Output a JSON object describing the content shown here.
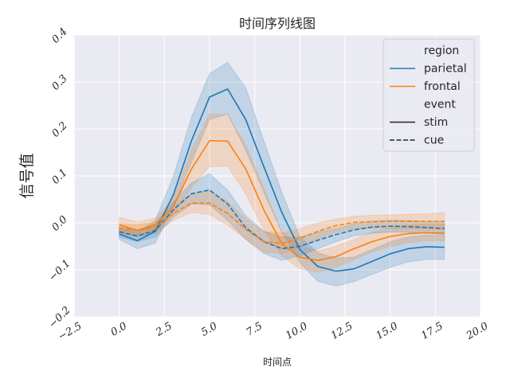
{
  "chart_data": {
    "type": "line",
    "title": "时间序列线图",
    "xlabel": "时间点",
    "ylabel": "信号值",
    "xlim": [
      -2.5,
      20.0
    ],
    "ylim": [
      -0.2,
      0.4
    ],
    "xticks": [
      -2.5,
      0.0,
      2.5,
      5.0,
      7.5,
      10.0,
      12.5,
      15.0,
      17.5,
      20.0
    ],
    "xtick_labels": [
      "−2.5",
      "0.0",
      "2.5",
      "5.0",
      "7.5",
      "10.0",
      "12.5",
      "15.0",
      "17.5",
      "20.0"
    ],
    "yticks": [
      -0.2,
      -0.1,
      0.0,
      0.1,
      0.2,
      0.3,
      0.4
    ],
    "ytick_labels": [
      "−0.2",
      "−0.1",
      "0.0",
      "0.1",
      "0.2",
      "0.3",
      "0.4"
    ],
    "grid": true,
    "legend_position": "top-right",
    "colors": {
      "parietal": "#1f77b4",
      "frontal": "#ff7f0e",
      "background": "#eaeaf2",
      "grid": "#ffffff"
    },
    "x": [
      0,
      1,
      2,
      3,
      4,
      5,
      6,
      7,
      8,
      9,
      10,
      11,
      12,
      13,
      14,
      15,
      16,
      17,
      18
    ],
    "series": [
      {
        "name": "parietal-stim",
        "region": "parietal",
        "event": "stim",
        "dash": "solid",
        "values": [
          -0.024,
          -0.038,
          -0.018,
          0.06,
          0.175,
          0.268,
          0.285,
          0.22,
          0.12,
          0.022,
          -0.057,
          -0.093,
          -0.103,
          -0.098,
          -0.082,
          -0.066,
          -0.055,
          -0.051,
          -0.052
        ],
        "lower": [
          -0.035,
          -0.055,
          -0.043,
          0.035,
          0.13,
          0.22,
          0.232,
          0.155,
          0.065,
          -0.02,
          -0.085,
          -0.125,
          -0.135,
          -0.125,
          -0.11,
          -0.095,
          -0.083,
          -0.078,
          -0.078
        ],
        "upper": [
          -0.012,
          -0.02,
          0.005,
          0.1,
          0.225,
          0.318,
          0.342,
          0.288,
          0.175,
          0.065,
          -0.03,
          -0.064,
          -0.075,
          -0.073,
          -0.057,
          -0.04,
          -0.03,
          -0.026,
          -0.027
        ]
      },
      {
        "name": "frontal-stim",
        "region": "frontal",
        "event": "stim",
        "dash": "solid",
        "values": [
          -0.004,
          -0.016,
          -0.005,
          0.035,
          0.115,
          0.175,
          0.174,
          0.115,
          0.028,
          -0.045,
          -0.073,
          -0.08,
          -0.072,
          -0.055,
          -0.04,
          -0.029,
          -0.023,
          -0.021,
          -0.022
        ],
        "lower": [
          -0.022,
          -0.03,
          -0.02,
          0.02,
          0.075,
          0.12,
          0.12,
          0.062,
          -0.015,
          -0.07,
          -0.098,
          -0.105,
          -0.095,
          -0.078,
          -0.062,
          -0.05,
          -0.042,
          -0.038,
          -0.038
        ],
        "upper": [
          0.012,
          0.002,
          0.01,
          0.052,
          0.155,
          0.232,
          0.23,
          0.165,
          0.075,
          -0.02,
          -0.05,
          -0.06,
          -0.05,
          -0.035,
          -0.02,
          -0.01,
          -0.005,
          -0.002,
          -0.003
        ]
      },
      {
        "name": "parietal-cue",
        "region": "parietal",
        "event": "cue",
        "dash": "dashed",
        "values": [
          -0.019,
          -0.028,
          -0.016,
          0.028,
          0.062,
          0.07,
          0.04,
          -0.01,
          -0.04,
          -0.055,
          -0.05,
          -0.037,
          -0.025,
          -0.015,
          -0.009,
          -0.007,
          -0.008,
          -0.01,
          -0.012
        ],
        "lower": [
          -0.03,
          -0.04,
          -0.03,
          0.012,
          0.04,
          0.038,
          0.005,
          -0.035,
          -0.065,
          -0.08,
          -0.07,
          -0.055,
          -0.04,
          -0.028,
          -0.022,
          -0.02,
          -0.02,
          -0.022,
          -0.025
        ],
        "upper": [
          -0.008,
          -0.015,
          -0.002,
          0.045,
          0.085,
          0.105,
          0.07,
          0.015,
          -0.018,
          -0.03,
          -0.03,
          -0.02,
          -0.012,
          -0.002,
          0.004,
          0.006,
          0.005,
          0.003,
          0.002
        ]
      },
      {
        "name": "frontal-cue",
        "region": "frontal",
        "event": "cue",
        "dash": "dashed",
        "values": [
          -0.012,
          -0.016,
          -0.01,
          0.02,
          0.042,
          0.042,
          0.02,
          -0.014,
          -0.04,
          -0.044,
          -0.033,
          -0.018,
          -0.006,
          0.001,
          0.002,
          0.003,
          0.003,
          0.003,
          0.003
        ],
        "lower": [
          -0.022,
          -0.028,
          -0.022,
          0.005,
          0.022,
          0.018,
          -0.005,
          -0.035,
          -0.062,
          -0.065,
          -0.052,
          -0.035,
          -0.02,
          -0.012,
          -0.012,
          -0.012,
          -0.012,
          -0.013,
          -0.015
        ],
        "upper": [
          -0.002,
          -0.004,
          0.002,
          0.035,
          0.062,
          0.068,
          0.045,
          0.008,
          -0.018,
          -0.022,
          -0.012,
          0.0,
          0.008,
          0.014,
          0.016,
          0.017,
          0.018,
          0.019,
          0.022
        ]
      }
    ],
    "legend": {
      "groups": [
        {
          "heading": "region",
          "items": [
            {
              "label": "parietal",
              "kind": "color",
              "key": "parietal"
            },
            {
              "label": "frontal",
              "kind": "color",
              "key": "frontal"
            }
          ]
        },
        {
          "heading": "event",
          "items": [
            {
              "label": "stim",
              "kind": "solid"
            },
            {
              "label": "cue",
              "kind": "dashed"
            }
          ]
        }
      ]
    }
  }
}
